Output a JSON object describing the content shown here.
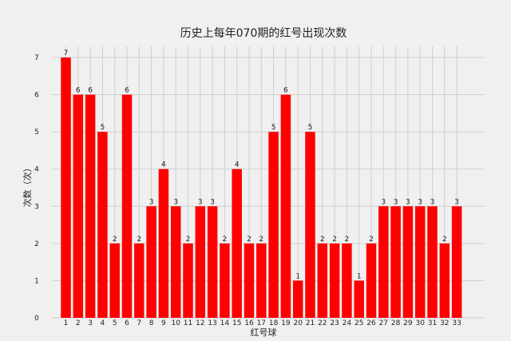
{
  "chart_data": {
    "type": "bar",
    "title": "历史上每年070期的红号出现次数",
    "xlabel": "红号球",
    "ylabel": "次数（次）",
    "categories": [
      "1",
      "2",
      "3",
      "4",
      "5",
      "6",
      "7",
      "8",
      "9",
      "10",
      "11",
      "12",
      "13",
      "14",
      "15",
      "16",
      "17",
      "18",
      "19",
      "20",
      "21",
      "22",
      "23",
      "24",
      "25",
      "26",
      "27",
      "28",
      "29",
      "30",
      "31",
      "32",
      "33"
    ],
    "values": [
      7,
      6,
      6,
      5,
      2,
      6,
      2,
      3,
      4,
      3,
      2,
      3,
      3,
      2,
      4,
      2,
      2,
      5,
      6,
      1,
      5,
      2,
      2,
      2,
      1,
      2,
      3,
      3,
      3,
      3,
      3,
      2,
      3
    ],
    "yticks": [
      0,
      1,
      2,
      3,
      4,
      5,
      6,
      7
    ],
    "ylim": [
      0,
      7.3
    ],
    "grid": true,
    "colors": {
      "bar": "#ff0000",
      "background": "#f0f0f0",
      "grid": "#cfcfcf"
    }
  }
}
